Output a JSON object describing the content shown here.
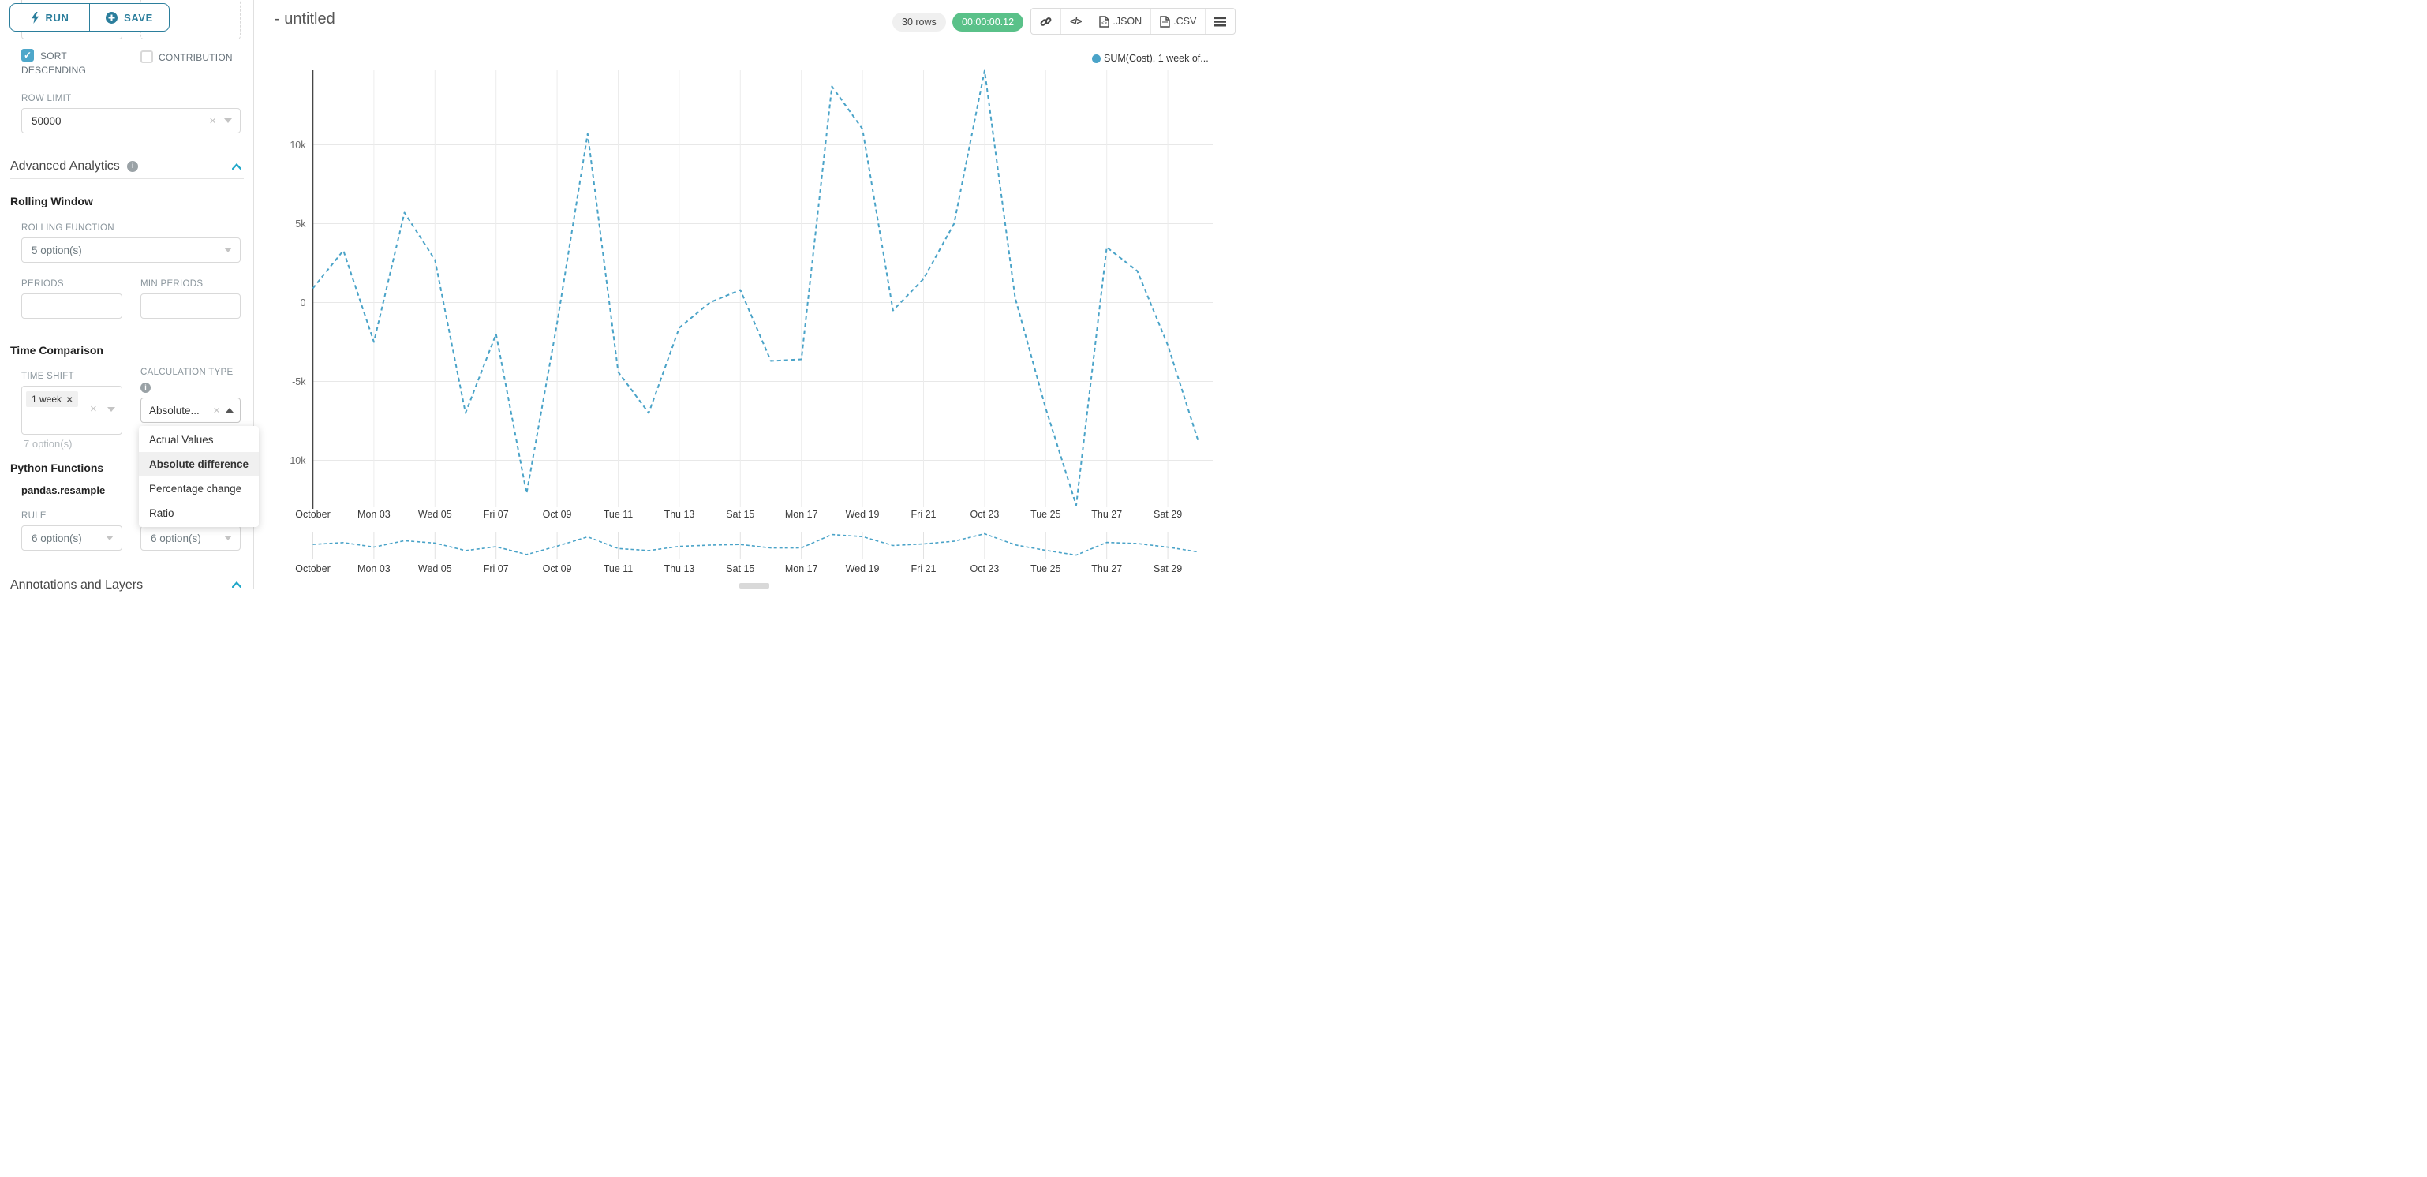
{
  "colors": {
    "accent_teal": "#2b7e9c",
    "checkbox_teal": "#4ea7ca",
    "chevron_blue": "#20a7c9",
    "line_blue": "#4aa3c8",
    "badge_green": "#5ac189"
  },
  "sidebar": {
    "run_label": "RUN",
    "save_label": "SAVE",
    "partial_select_value": "7 option(s)",
    "sort_descending_line1": "SORT",
    "sort_descending_line2": "DESCENDING",
    "contribution_label": "CONTRIBUTION",
    "row_limit_label": "ROW LIMIT",
    "row_limit_value": "50000",
    "advanced_analytics_title": "Advanced Analytics",
    "rolling_window": {
      "title": "Rolling Window",
      "rolling_function_label": "ROLLING FUNCTION",
      "rolling_function_value": "5 option(s)",
      "periods_label": "PERIODS",
      "min_periods_label": "MIN PERIODS"
    },
    "time_comparison": {
      "title": "Time Comparison",
      "time_shift_label": "TIME SHIFT",
      "time_shift_tag": "1 week",
      "time_shift_hint": "7 option(s)",
      "calculation_type_label": "CALCULATION TYPE",
      "calculation_type_value": "Absolute...",
      "dropdown_options": [
        "Actual Values",
        "Absolute difference",
        "Percentage change",
        "Ratio"
      ],
      "selected_option": "Absolute difference"
    },
    "python_functions": {
      "title": "Python Functions",
      "function_name": "pandas.resample",
      "rule_label": "RULE",
      "rule_value_1": "6 option(s)",
      "rule_value_2": "6 option(s)"
    },
    "annotations_title": "Annotations and Layers"
  },
  "header": {
    "title": "- untitled",
    "rows_badge": "30 rows",
    "timer_badge": "00:00:00.12",
    "json_label": ".JSON",
    "csv_label": ".CSV"
  },
  "chart_data": {
    "type": "line",
    "title": "",
    "legend_label": "SUM(Cost), 1 week of...",
    "legend_position": "top-right",
    "grid": true,
    "line_style": "dashed",
    "x": [
      "Oct 01",
      "Oct 02",
      "Oct 03",
      "Oct 04",
      "Oct 05",
      "Oct 06",
      "Oct 07",
      "Oct 08",
      "Oct 09",
      "Oct 10",
      "Oct 11",
      "Oct 12",
      "Oct 13",
      "Oct 14",
      "Oct 15",
      "Oct 16",
      "Oct 17",
      "Oct 18",
      "Oct 19",
      "Oct 20",
      "Oct 21",
      "Oct 22",
      "Oct 23",
      "Oct 24",
      "Oct 25",
      "Oct 26",
      "Oct 27",
      "Oct 28",
      "Oct 29",
      "Oct 30"
    ],
    "x_tick_labels": [
      "October",
      "Mon 03",
      "Wed 05",
      "Fri 07",
      "Oct 09",
      "Tue 11",
      "Thu 13",
      "Sat 15",
      "Mon 17",
      "Wed 19",
      "Fri 21",
      "Oct 23",
      "Tue 25",
      "Thu 27",
      "Sat 29"
    ],
    "x_tick_days": [
      1,
      3,
      5,
      7,
      9,
      11,
      13,
      15,
      17,
      19,
      21,
      23,
      25,
      27,
      29
    ],
    "y_ticks": [
      10000,
      5000,
      0,
      -5000,
      -10000
    ],
    "y_tick_labels": [
      "10k",
      "5k",
      "0",
      "-5k",
      "-10k"
    ],
    "ylim": [
      -13000,
      14750
    ],
    "series": [
      {
        "name": "SUM(Cost), 1 week offset",
        "color": "#4aa3c8",
        "values": [
          900,
          3300,
          -2500,
          5700,
          2700,
          -7000,
          -2000,
          -12100,
          -1300,
          10700,
          -4400,
          -7000,
          -1600,
          0,
          800,
          -3700,
          -3600,
          13700,
          11000,
          -500,
          1500,
          5000,
          14700,
          300,
          -6700,
          -12850,
          3500,
          2000,
          -2700,
          -8800
        ]
      }
    ]
  }
}
